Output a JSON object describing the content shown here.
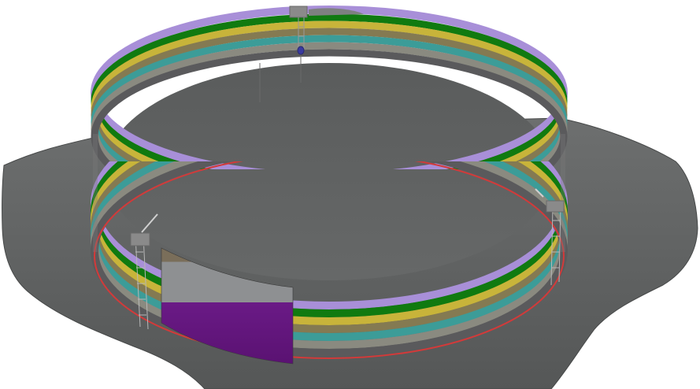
{
  "scene": {
    "background": "#ffffff",
    "foundation_color": "#5f6161",
    "foundation_top_color": "#6a6c6c",
    "floor_color": "#606262",
    "inner_shadow_color": "#555757",
    "base_ring_color": "#d23a3a",
    "wall_bands": [
      {
        "name": "lavender",
        "color": "#a88fd8"
      },
      {
        "name": "green",
        "color": "#107a10"
      },
      {
        "name": "yellow",
        "color": "#c8b43a"
      },
      {
        "name": "olive-brown",
        "color": "#847a52"
      },
      {
        "name": "teal",
        "color": "#3c9c98"
      },
      {
        "name": "grey",
        "color": "#8a8a80"
      },
      {
        "name": "dark-grey",
        "color": "#5a5a5c"
      }
    ],
    "panel_top_color": "#7a6e5a",
    "panel_mid_color": "#8e9092",
    "panel_bottom_color": "#6a1a86"
  }
}
